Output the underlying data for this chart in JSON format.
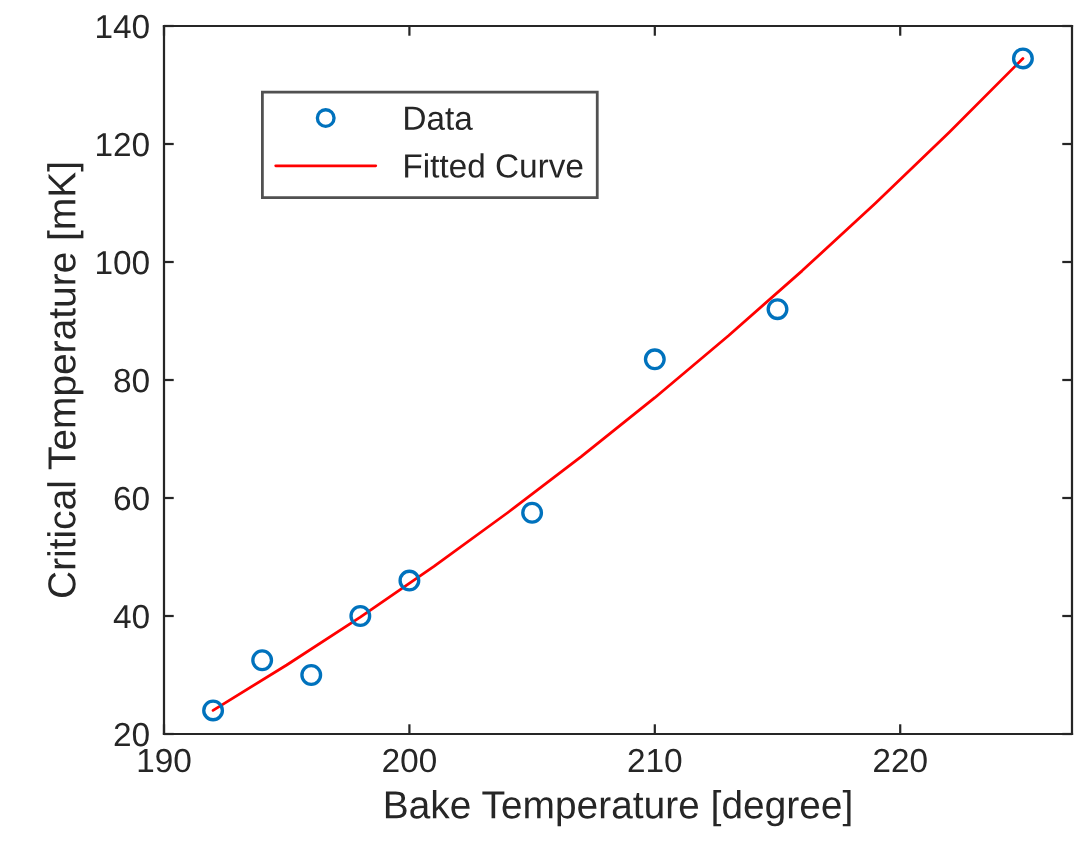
{
  "chart_data": {
    "type": "scatter",
    "xlabel": "Bake Temperature [degree]",
    "ylabel": "Critical Temperature [mK]",
    "xlim": [
      190,
      227
    ],
    "xticks": [
      190,
      200,
      210,
      220
    ],
    "ylim": [
      20,
      140
    ],
    "yticks": [
      20,
      40,
      60,
      80,
      100,
      120,
      140
    ],
    "grid": false,
    "legend": "top left",
    "series": [
      {
        "name": "Data",
        "marker": "circle",
        "color": "#0072bd",
        "x": [
          192,
          194,
          196,
          198,
          200,
          205,
          210,
          215,
          225
        ],
        "values": [
          24,
          32.5,
          30,
          40,
          46,
          57.5,
          83.5,
          92,
          134.5
        ]
      },
      {
        "name": "Fitted Curve",
        "type": "line",
        "marker": "none",
        "line_style": "solid",
        "color": "#ff0000",
        "x": [
          192,
          195,
          198,
          201,
          204,
          207,
          210,
          213,
          216,
          219,
          222,
          225
        ],
        "values": [
          24,
          31.7,
          39.8,
          48.4,
          57.5,
          67,
          77,
          87.5,
          98.5,
          110,
          122,
          134.5
        ]
      }
    ]
  }
}
